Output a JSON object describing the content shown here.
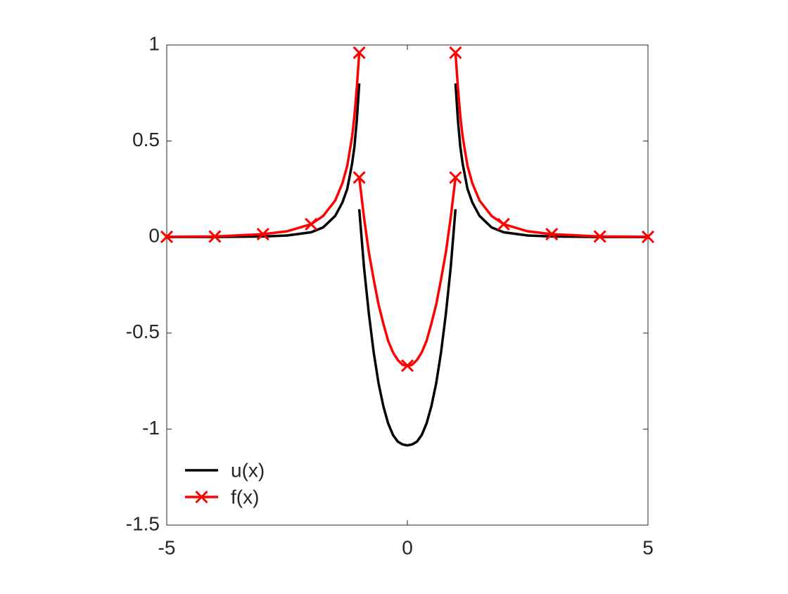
{
  "chart_data": {
    "type": "line",
    "x": [
      -5,
      -4,
      -3,
      -2.5,
      -2,
      -1.75,
      -1.5,
      -1.35,
      -1.25,
      -1.15,
      -1.1,
      -1.05,
      -1,
      -1,
      -1,
      -0.9,
      -0.8,
      -0.7,
      -0.6,
      -0.5,
      -0.4,
      -0.3,
      -0.2,
      -0.1,
      0,
      0.1,
      0.2,
      0.3,
      0.4,
      0.5,
      0.6,
      0.7,
      0.8,
      0.9,
      1,
      1,
      1,
      1.05,
      1.1,
      1.15,
      1.25,
      1.35,
      1.5,
      1.75,
      2,
      2.5,
      3,
      4,
      5
    ],
    "series": [
      {
        "name": "u(x)",
        "color": "#000000",
        "marker": false,
        "values": [
          0,
          0.0005,
          0.003,
          0.008,
          0.025,
          0.05,
          0.11,
          0.18,
          0.25,
          0.38,
          0.47,
          0.61,
          0.8,
          null,
          0.145,
          -0.16,
          -0.4,
          -0.6,
          -0.76,
          -0.88,
          -0.97,
          -1.03,
          -1.065,
          -1.08,
          -1.085,
          -1.08,
          -1.065,
          -1.03,
          -0.97,
          -0.88,
          -0.76,
          -0.6,
          -0.4,
          -0.16,
          0.145,
          null,
          0.8,
          0.61,
          0.47,
          0.38,
          0.25,
          0.18,
          0.11,
          0.05,
          0.025,
          0.008,
          0.003,
          0.0005,
          0
        ]
      },
      {
        "name": "f(x)",
        "color": "#ff0000",
        "marker": true,
        "values": [
          0.001,
          0.003,
          0.015,
          0.03,
          0.067,
          0.11,
          0.19,
          0.28,
          0.37,
          0.52,
          0.63,
          0.78,
          0.96,
          null,
          0.31,
          0.1,
          -0.08,
          -0.22,
          -0.35,
          -0.45,
          -0.54,
          -0.6,
          -0.64,
          -0.665,
          -0.67,
          -0.665,
          -0.64,
          -0.6,
          -0.54,
          -0.45,
          -0.35,
          -0.22,
          -0.08,
          0.1,
          0.31,
          null,
          0.96,
          0.78,
          0.63,
          0.52,
          0.37,
          0.28,
          0.19,
          0.11,
          0.067,
          0.03,
          0.015,
          0.003,
          0.001
        ]
      }
    ],
    "xlim": [
      -5,
      5
    ],
    "xticks": [
      -5,
      0,
      5
    ],
    "ylim": [
      -1.5,
      1
    ],
    "yticks": [
      -1.5,
      -1,
      -0.5,
      0,
      0.5,
      1
    ],
    "grid": false,
    "legend": "southwest"
  }
}
